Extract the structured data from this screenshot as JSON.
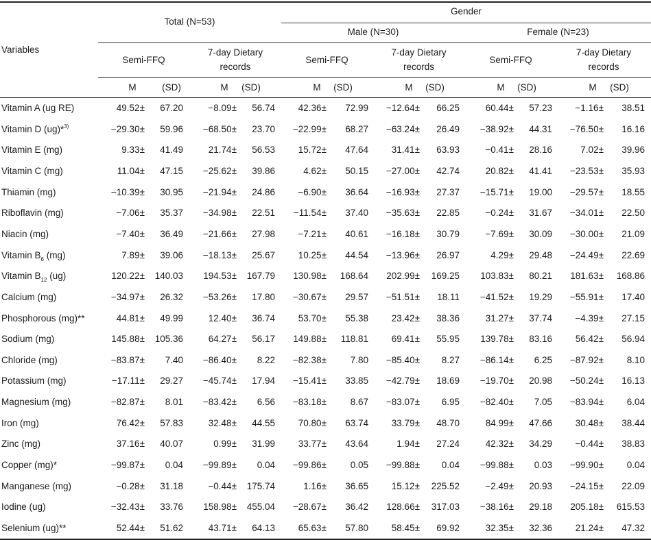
{
  "header": {
    "variables": "Variables",
    "total": "Total (N=53)",
    "gender": "Gender",
    "male": "Male (N=30)",
    "female": "Female (N=23)",
    "semi_ffq": "Semi-FFQ",
    "dietary_line1": "7-day Dietary",
    "dietary_line2": "records",
    "m": "M",
    "sd": "(SD)"
  },
  "rows": [
    {
      "label": "Vitamin A (ug RE)",
      "sub": "",
      "suffix": "",
      "sup": "",
      "values": [
        [
          "49.52",
          "67.20"
        ],
        [
          "−8.09",
          "56.74"
        ],
        [
          "42.36",
          "72.99"
        ],
        [
          "−12.64",
          "66.25"
        ],
        [
          "60.44",
          "57.23"
        ],
        [
          "−1.16",
          "38.51"
        ]
      ]
    },
    {
      "label": "Vitamin D (ug)*",
      "sub": "",
      "suffix": "",
      "sup": "3)",
      "values": [
        [
          "−29.30",
          "59.96"
        ],
        [
          "−68.50",
          "23.70"
        ],
        [
          "−22.99",
          "68.27"
        ],
        [
          "−63.24",
          "26.49"
        ],
        [
          "−38.92",
          "44.31"
        ],
        [
          "−76.50",
          "16.16"
        ]
      ]
    },
    {
      "label": "Vitamin E (mg)",
      "sub": "",
      "suffix": "",
      "sup": "",
      "values": [
        [
          "9.33",
          "41.49"
        ],
        [
          "21.74",
          "56.53"
        ],
        [
          "15.72",
          "47.64"
        ],
        [
          "31.41",
          "63.93"
        ],
        [
          "−0.41",
          "28.16"
        ],
        [
          "7.02",
          "39.96"
        ]
      ]
    },
    {
      "label": "Vitamin C (mg)",
      "sub": "",
      "suffix": "",
      "sup": "",
      "values": [
        [
          "11.04",
          "47.15"
        ],
        [
          "−25.62",
          "39.86"
        ],
        [
          "4.62",
          "50.15"
        ],
        [
          "−27.00",
          "42.74"
        ],
        [
          "20.82",
          "41.41"
        ],
        [
          "−23.53",
          "35.93"
        ]
      ]
    },
    {
      "label": "Thiamin (mg)",
      "sub": "",
      "suffix": "",
      "sup": "",
      "values": [
        [
          "−10.39",
          "30.95"
        ],
        [
          "−21.94",
          "24.86"
        ],
        [
          "−6.90",
          "36.64"
        ],
        [
          "−16.93",
          "27.37"
        ],
        [
          "−15.71",
          "19.00"
        ],
        [
          "−29.57",
          "18.55"
        ]
      ]
    },
    {
      "label": "Riboflavin (mg)",
      "sub": "",
      "suffix": "",
      "sup": "",
      "values": [
        [
          "−7.06",
          "35.37"
        ],
        [
          "−34.98",
          "22.51"
        ],
        [
          "−11.54",
          "37.40"
        ],
        [
          "−35.63",
          "22.85"
        ],
        [
          "−0.24",
          "31.67"
        ],
        [
          "−34.01",
          "22.50"
        ]
      ]
    },
    {
      "label": "Niacin (mg)",
      "sub": "",
      "suffix": "",
      "sup": "",
      "values": [
        [
          "−7.40",
          "36.49"
        ],
        [
          "−21.66",
          "27.98"
        ],
        [
          "−7.21",
          "40.61"
        ],
        [
          "−16.18",
          "30.79"
        ],
        [
          "−7.69",
          "30.09"
        ],
        [
          "−30.00",
          "21.09"
        ]
      ]
    },
    {
      "label": "Vitamin B",
      "sub": "6",
      "suffix": " (mg)",
      "sup": "",
      "values": [
        [
          "7.89",
          "39.06"
        ],
        [
          "−18.13",
          "25.67"
        ],
        [
          "10.25",
          "44.54"
        ],
        [
          "−13.96",
          "26.97"
        ],
        [
          "4.29",
          "29.48"
        ],
        [
          "−24.49",
          "22.69"
        ]
      ]
    },
    {
      "label": "Vitamin B",
      "sub": "12",
      "suffix": " (ug)",
      "sup": "",
      "values": [
        [
          "120.22",
          "140.03"
        ],
        [
          "194.53",
          "167.79"
        ],
        [
          "130.98",
          "168.64"
        ],
        [
          "202.99",
          "169.25"
        ],
        [
          "103.83",
          "80.21"
        ],
        [
          "181.63",
          "168.86"
        ]
      ]
    },
    {
      "label": "Calcium (mg)",
      "sub": "",
      "suffix": "",
      "sup": "",
      "values": [
        [
          "−34.97",
          "26.32"
        ],
        [
          "−53.26",
          "17.80"
        ],
        [
          "−30.67",
          "29.57"
        ],
        [
          "−51.51",
          "18.11"
        ],
        [
          "−41.52",
          "19.29"
        ],
        [
          "−55.91",
          "17.40"
        ]
      ]
    },
    {
      "label": "Phosphorous (mg)**",
      "sub": "",
      "suffix": "",
      "sup": "",
      "values": [
        [
          "44.81",
          "49.99"
        ],
        [
          "12.40",
          "36.74"
        ],
        [
          "53.70",
          "55.38"
        ],
        [
          "23.42",
          "38.36"
        ],
        [
          "31.27",
          "37.74"
        ],
        [
          "−4.39",
          "27.15"
        ]
      ]
    },
    {
      "label": "Sodium (mg)",
      "sub": "",
      "suffix": "",
      "sup": "",
      "values": [
        [
          "145.88",
          "105.36"
        ],
        [
          "64.27",
          "56.17"
        ],
        [
          "149.88",
          "118.81"
        ],
        [
          "69.41",
          "55.95"
        ],
        [
          "139.78",
          "83.16"
        ],
        [
          "56.42",
          "56.94"
        ]
      ]
    },
    {
      "label": "Chloride (mg)",
      "sub": "",
      "suffix": "",
      "sup": "",
      "values": [
        [
          "−83.87",
          "7.40"
        ],
        [
          "−86.40",
          "8.22"
        ],
        [
          "−82.38",
          "7.80"
        ],
        [
          "−85.40",
          "8.27"
        ],
        [
          "−86.14",
          "6.25"
        ],
        [
          "−87.92",
          "8.10"
        ]
      ]
    },
    {
      "label": "Potassium (mg)",
      "sub": "",
      "suffix": "",
      "sup": "",
      "values": [
        [
          "−17.11",
          "29.27"
        ],
        [
          "−45.74",
          "17.94"
        ],
        [
          "−15.41",
          "33.85"
        ],
        [
          "−42.79",
          "18.69"
        ],
        [
          "−19.70",
          "20.98"
        ],
        [
          "−50.24",
          "16.13"
        ]
      ]
    },
    {
      "label": "Magnesium (mg)",
      "sub": "",
      "suffix": "",
      "sup": "",
      "values": [
        [
          "−82.87",
          "8.01"
        ],
        [
          "−83.42",
          "6.56"
        ],
        [
          "−83.18",
          "8.67"
        ],
        [
          "−83.07",
          "6.95"
        ],
        [
          "−82.40",
          "7.05"
        ],
        [
          "−83.94",
          "6.04"
        ]
      ]
    },
    {
      "label": "Iron (mg)",
      "sub": "",
      "suffix": "",
      "sup": "",
      "values": [
        [
          "76.42",
          "57.83"
        ],
        [
          "32.48",
          "44.55"
        ],
        [
          "70.80",
          "63.74"
        ],
        [
          "33.79",
          "48.70"
        ],
        [
          "84.99",
          "47.66"
        ],
        [
          "30.48",
          "38.44"
        ]
      ]
    },
    {
      "label": "Zinc (mg)",
      "sub": "",
      "suffix": "",
      "sup": "",
      "values": [
        [
          "37.16",
          "40.07"
        ],
        [
          "0.99",
          "31.99"
        ],
        [
          "33.77",
          "43.64"
        ],
        [
          "1.94",
          "27.24"
        ],
        [
          "42.32",
          "34.29"
        ],
        [
          "−0.44",
          "38.83"
        ]
      ]
    },
    {
      "label": "Copper (mg)*",
      "sub": "",
      "suffix": "",
      "sup": "",
      "values": [
        [
          "−99.87",
          "0.04"
        ],
        [
          "−99.89",
          "0.04"
        ],
        [
          "−99.86",
          "0.05"
        ],
        [
          "−99.88",
          "0.04"
        ],
        [
          "−99.88",
          "0.03"
        ],
        [
          "−99.90",
          "0.04"
        ]
      ]
    },
    {
      "label": "Manganese (mg)",
      "sub": "",
      "suffix": "",
      "sup": "",
      "values": [
        [
          "−0.28",
          "31.18"
        ],
        [
          "−0.44",
          "175.74"
        ],
        [
          "1.16",
          "36.65"
        ],
        [
          "15.12",
          "225.52"
        ],
        [
          "−2.49",
          "20.93"
        ],
        [
          "−24.15",
          "22.09"
        ]
      ]
    },
    {
      "label": "Iodine (ug)",
      "sub": "",
      "suffix": "",
      "sup": "",
      "values": [
        [
          "−32.43",
          "33.76"
        ],
        [
          "158.98",
          "455.04"
        ],
        [
          "−28.67",
          "36.42"
        ],
        [
          "128.66",
          "317.03"
        ],
        [
          "−38.16",
          "29.18"
        ],
        [
          "205.18",
          "615.53"
        ]
      ]
    },
    {
      "label": "Selenium (ug)**",
      "sub": "",
      "suffix": "",
      "sup": "",
      "values": [
        [
          "52.44",
          "51.62"
        ],
        [
          "43.71",
          "64.13"
        ],
        [
          "65.63",
          "57.80"
        ],
        [
          "58.45",
          "69.92"
        ],
        [
          "32.35",
          "32.36"
        ],
        [
          "21.24",
          "47.32"
        ]
      ]
    }
  ],
  "pm": "±"
}
